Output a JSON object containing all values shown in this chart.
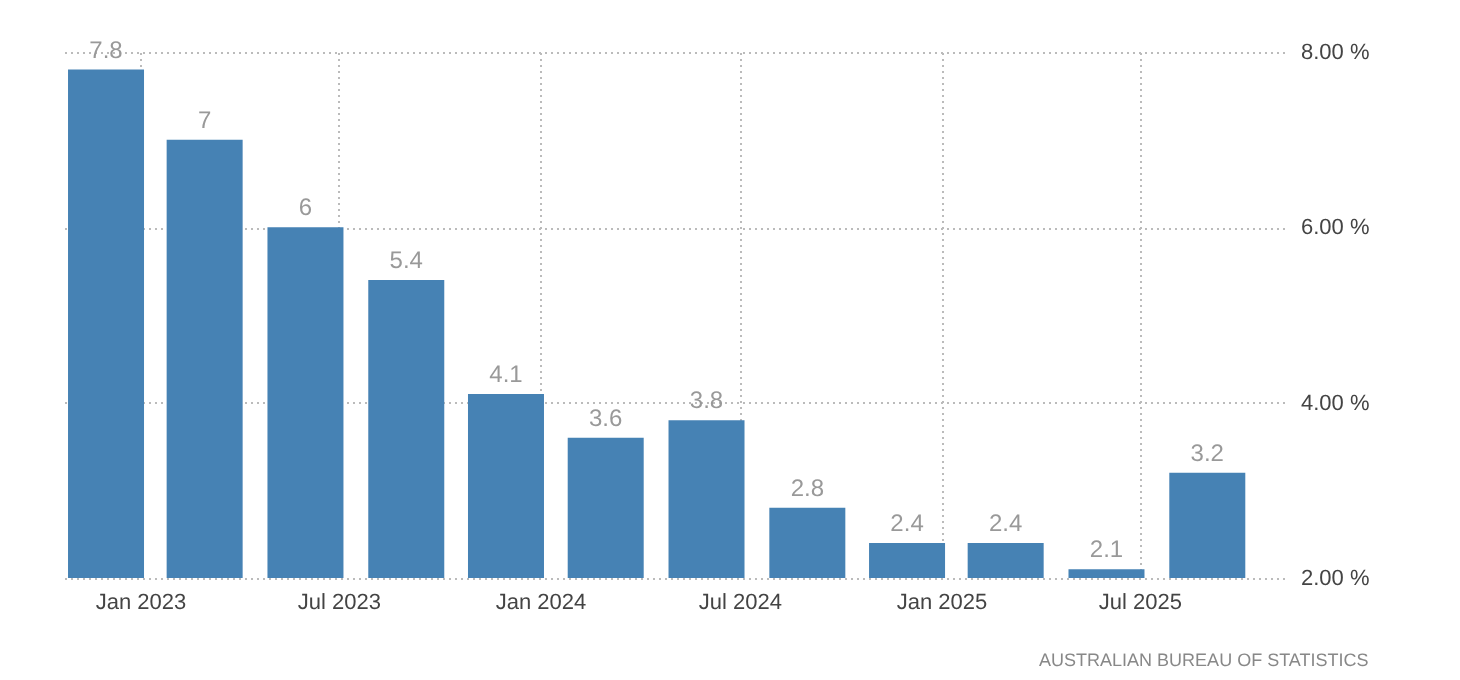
{
  "chart_data": {
    "type": "bar",
    "x": [
      "2022-12-01",
      "2023-03-01",
      "2023-06-01",
      "2023-09-01",
      "2023-12-01",
      "2024-03-01",
      "2024-06-01",
      "2024-09-01",
      "2024-12-01",
      "2025-03-01",
      "2025-06-01",
      "2025-09-01"
    ],
    "values": [
      7.8,
      7,
      6,
      5.4,
      4.1,
      3.6,
      3.8,
      2.8,
      2.4,
      2.4,
      2.1,
      3.2
    ],
    "color": "#4682b4",
    "data_labels": true,
    "ylim": [
      2,
      8
    ],
    "yticks": [
      {
        "value": 2,
        "label": "2.00 %"
      },
      {
        "value": 4,
        "label": "4.00 %"
      },
      {
        "value": 6,
        "label": "6.00 %"
      },
      {
        "value": 8,
        "label": "8.00 %"
      }
    ],
    "xlim": [
      "2022-10-20",
      "2025-11-10"
    ],
    "xticks": [
      {
        "value": "2023-01-01",
        "label": "Jan 2023"
      },
      {
        "value": "2023-07-01",
        "label": "Jul 2023"
      },
      {
        "value": "2024-01-01",
        "label": "Jan 2024"
      },
      {
        "value": "2024-07-01",
        "label": "Jul 2024"
      },
      {
        "value": "2025-01-01",
        "label": "Jan 2025"
      },
      {
        "value": "2025-07-01",
        "label": "Jul 2025"
      }
    ],
    "grid": true,
    "annotations": [
      "AUSTRALIAN BUREAU OF STATISTICS"
    ]
  }
}
